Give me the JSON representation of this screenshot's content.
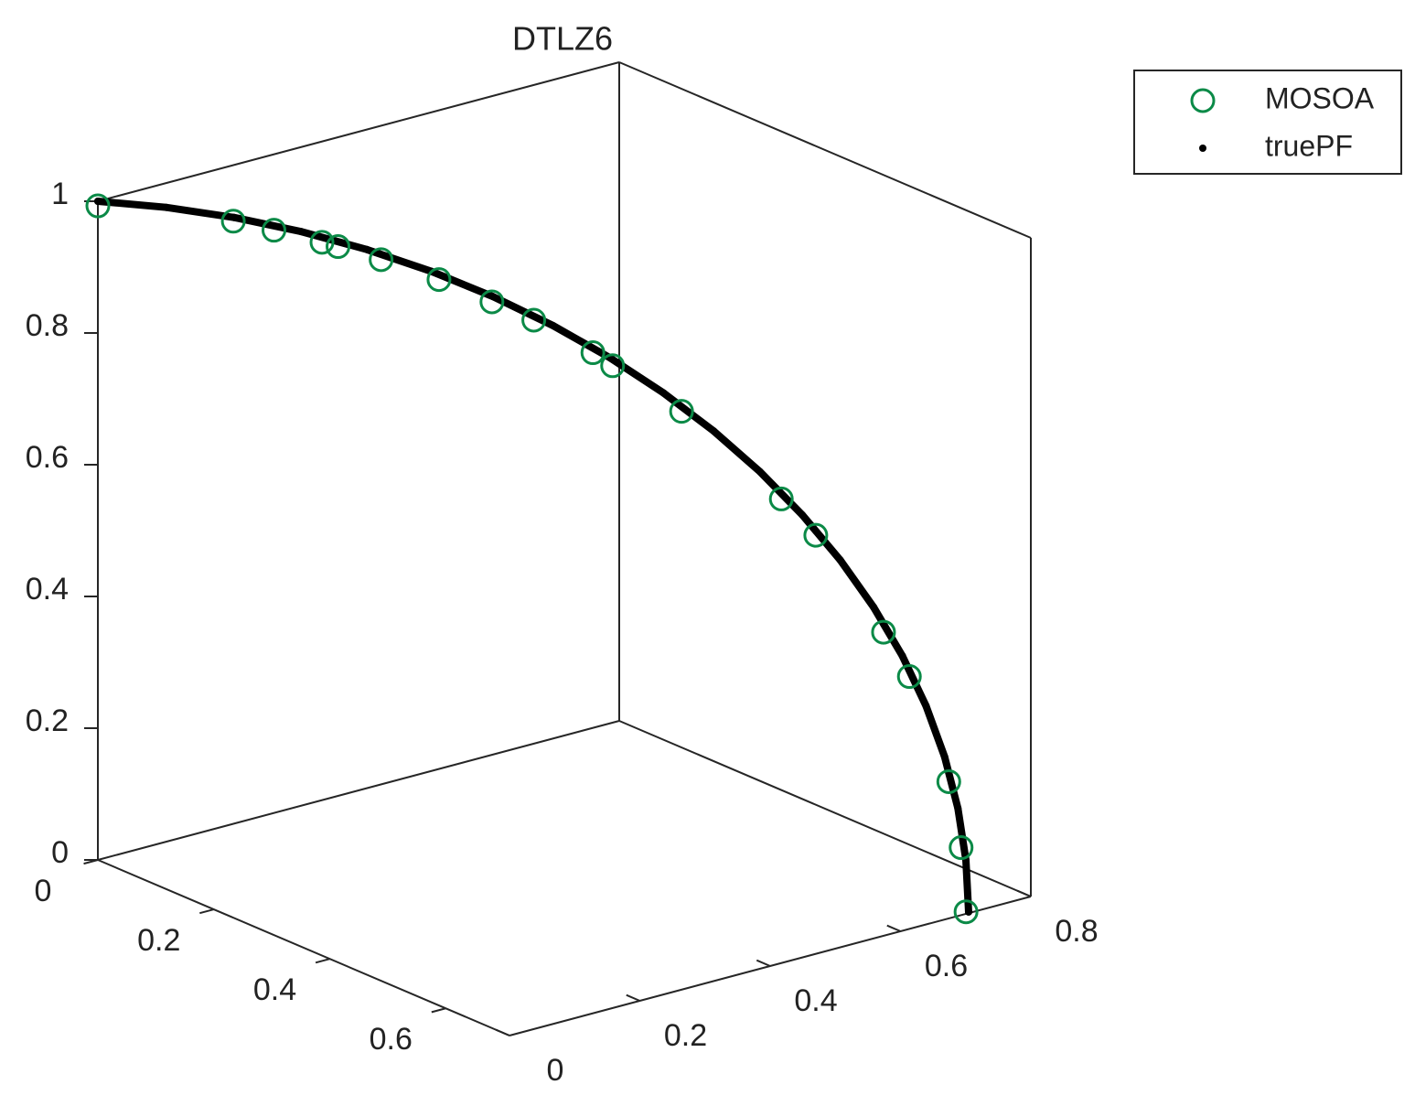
{
  "chart_data": {
    "type": "scatter3d",
    "title": "DTLZ6",
    "xlim": [
      0,
      0.71
    ],
    "xticks": [
      0,
      0.2,
      0.4,
      0.6
    ],
    "ylim": [
      0,
      0.8
    ],
    "yticks": [
      0,
      0.2,
      0.4,
      0.6,
      0.8
    ],
    "zlim": [
      0,
      1
    ],
    "zticks": [
      0,
      0.2,
      0.4,
      0.6,
      0.8,
      1
    ],
    "legend_position": "outside-top-right",
    "series": [
      {
        "name": "MOSOA",
        "marker": "circle",
        "color": "#0b8a47",
        "x": [
          0,
          0.11,
          0.143,
          0.182,
          0.195,
          0.23,
          0.277,
          0.32,
          0.354,
          0.402,
          0.418,
          0.474,
          0.555,
          0.583,
          0.638,
          0.659,
          0.691,
          0.701,
          0.705
        ],
        "y": [
          0,
          0.11,
          0.143,
          0.182,
          0.195,
          0.23,
          0.277,
          0.32,
          0.354,
          0.402,
          0.418,
          0.474,
          0.555,
          0.583,
          0.638,
          0.659,
          0.691,
          0.701,
          0.705
        ],
        "z": [
          0.993,
          0.982,
          0.972,
          0.958,
          0.953,
          0.937,
          0.912,
          0.883,
          0.859,
          0.815,
          0.797,
          0.734,
          0.61,
          0.558,
          0.417,
          0.352,
          0.196,
          0.097,
          0
        ]
      },
      {
        "name": "truePF",
        "marker": "dot",
        "color": "#000000",
        "x": [
          0,
          0.0555,
          0.1106,
          0.165,
          0.2185,
          0.2706,
          0.321,
          0.3695,
          0.4156,
          0.4592,
          0.5,
          0.5377,
          0.572,
          0.6029,
          0.63,
          0.6533,
          0.6725,
          0.6876,
          0.6984,
          0.7049,
          0.7071
        ],
        "y": [
          0,
          0.0555,
          0.1106,
          0.165,
          0.2185,
          0.2706,
          0.321,
          0.3695,
          0.4156,
          0.4592,
          0.5,
          0.5377,
          0.572,
          0.6029,
          0.63,
          0.6533,
          0.6725,
          0.6876,
          0.6984,
          0.7049,
          0.7071
        ],
        "z": [
          1,
          0.9969,
          0.9877,
          0.9724,
          0.9511,
          0.9239,
          0.891,
          0.8526,
          0.809,
          0.7604,
          0.7071,
          0.6494,
          0.5878,
          0.5225,
          0.454,
          0.3827,
          0.309,
          0.2334,
          0.1564,
          0.0785,
          0
        ]
      }
    ]
  }
}
